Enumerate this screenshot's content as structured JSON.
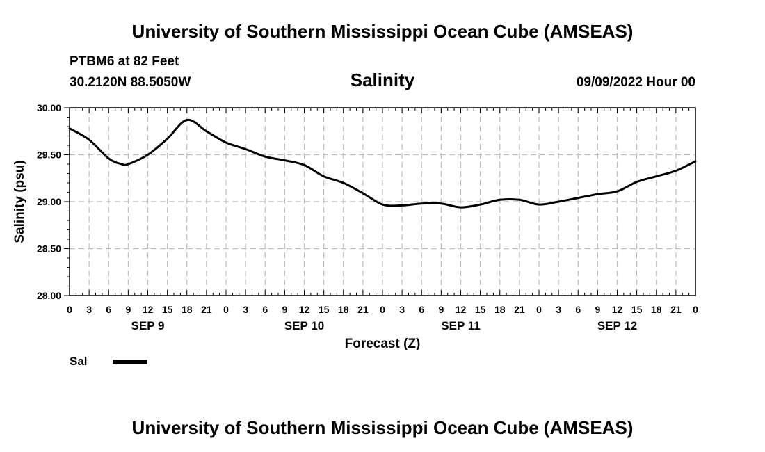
{
  "header": {
    "title": "University of Southern Mississippi Ocean Cube (AMSEAS)",
    "station": "PTBM6 at 82 Feet",
    "coords": "30.2120N  88.5050W",
    "datetime": "09/09/2022 Hour 00"
  },
  "footer": {
    "title": "University of Southern Mississippi Ocean Cube (AMSEAS)"
  },
  "chart_data": {
    "type": "line",
    "title": "Salinity",
    "xlabel": "Forecast (Z)",
    "ylabel": "Salinity (psu)",
    "ylim": [
      28.0,
      30.0
    ],
    "xlim": [
      0,
      96
    ],
    "grid": true,
    "y_ticks": [
      "28.00",
      "28.50",
      "29.00",
      "29.50",
      "30.00"
    ],
    "x_tick_labels": [
      "0",
      "3",
      "6",
      "9",
      "12",
      "15",
      "18",
      "21",
      "0",
      "3",
      "6",
      "9",
      "12",
      "15",
      "18",
      "21",
      "0",
      "3",
      "6",
      "9",
      "12",
      "15",
      "18",
      "21",
      "0",
      "3",
      "6",
      "9",
      "12",
      "15",
      "18",
      "21",
      "0"
    ],
    "day_labels": [
      {
        "label": "SEP 9",
        "hour": 12
      },
      {
        "label": "SEP 10",
        "hour": 36
      },
      {
        "label": "SEP 11",
        "hour": 60
      },
      {
        "label": "SEP 12",
        "hour": 84
      }
    ],
    "series": [
      {
        "name": "Sal",
        "color": "#000000",
        "x": [
          0,
          3,
          6,
          8,
          9,
          12,
          15,
          18,
          21,
          24,
          27,
          30,
          33,
          36,
          39,
          42,
          45,
          48,
          51,
          54,
          57,
          60,
          63,
          66,
          69,
          72,
          75,
          78,
          81,
          84,
          87,
          90,
          93,
          96
        ],
        "values": [
          29.78,
          29.66,
          29.46,
          29.4,
          29.4,
          29.5,
          29.67,
          29.87,
          29.75,
          29.63,
          29.56,
          29.48,
          29.44,
          29.39,
          29.27,
          29.2,
          29.09,
          28.97,
          28.96,
          28.98,
          28.98,
          28.94,
          28.97,
          29.02,
          29.02,
          28.97,
          29.0,
          29.04,
          29.08,
          29.11,
          29.21,
          29.27,
          29.33,
          29.43
        ]
      }
    ]
  },
  "legend": {
    "label": "Sal",
    "color": "#000000"
  }
}
